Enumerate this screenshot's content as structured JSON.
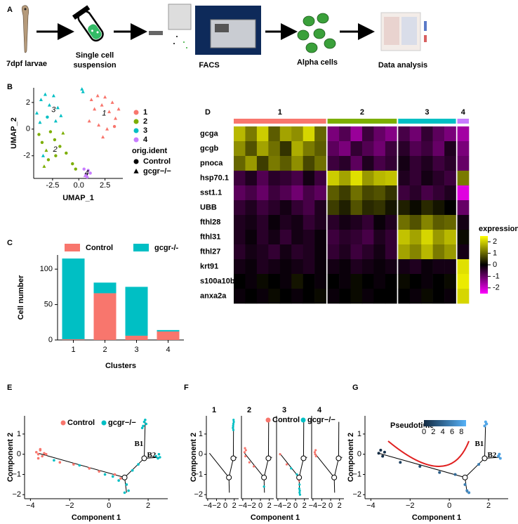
{
  "figure": {
    "panel_labels": [
      "A",
      "B",
      "C",
      "D",
      "E",
      "F",
      "G"
    ],
    "pipeline": [
      "7dpf larvae",
      "Single cell suspension",
      "FACS",
      "Alpha cells",
      "Data analysis"
    ]
  },
  "chart_data": [
    {
      "type": "scatter",
      "xlabel": "UMAP_1",
      "ylabel": "UMAP_2",
      "xlim": [
        -4.3,
        4.2
      ],
      "xticks": [
        -2.5,
        {
          "value": 0,
          "label": "0.0"
        },
        2.5
      ],
      "ylim": [
        -3.7,
        3.1
      ],
      "yticks": [
        -2,
        0,
        2
      ],
      "shape_legend_title": "orig.ident",
      "shape_legend": [
        {
          "name": "Control",
          "marker": "circle"
        },
        {
          "name": "gcgr−/−",
          "marker": "triangle"
        }
      ],
      "series": [
        {
          "name": "1",
          "color": "#F8766D",
          "x": [
            1.2,
            1.8,
            2.5,
            3.2,
            3.8,
            1.5,
            2.2,
            2.9,
            3.5,
            1.0,
            1.9,
            2.7,
            3.4,
            2.3
          ],
          "y": [
            2.2,
            2.5,
            2.4,
            2.0,
            1.5,
            1.5,
            1.8,
            1.3,
            0.8,
            0.6,
            0.3,
            0.0,
            0.2,
            -0.6
          ],
          "markers": [
            1,
            1,
            1,
            1,
            1,
            1,
            1,
            1,
            1,
            1,
            1,
            1,
            0,
            1
          ]
        },
        {
          "name": "2",
          "color": "#7CAE00",
          "x": [
            -3.8,
            -3.5,
            -3.1,
            -2.7,
            -2.3,
            -1.8,
            -1.5,
            -2.9,
            -2.2,
            -1.2,
            -0.6,
            -3.3,
            -0.3
          ],
          "y": [
            -0.4,
            -1.0,
            -1.6,
            -0.2,
            -0.8,
            -1.3,
            -0.3,
            -2.3,
            -2.0,
            -1.8,
            -2.6,
            -2.8,
            -3.0
          ],
          "markers": [
            0,
            0,
            1,
            0,
            0,
            0,
            1,
            0,
            0,
            0,
            0,
            1,
            0
          ]
        },
        {
          "name": "3",
          "color": "#00BFC4",
          "x": [
            -4.0,
            -3.6,
            -3.2,
            -2.8,
            -2.4,
            -2.0,
            -3.7,
            -3.0,
            -2.2,
            -1.7,
            -3.4,
            0.3,
            0.4
          ],
          "y": [
            1.2,
            2.2,
            2.6,
            1.8,
            2.5,
            1.6,
            0.5,
            0.9,
            0.6,
            1.0,
            -2.0,
            3.0,
            2.8
          ],
          "markers": [
            1,
            1,
            1,
            1,
            1,
            1,
            1,
            0,
            1,
            1,
            1,
            1,
            1
          ]
        },
        {
          "name": "4",
          "color": "#C77CFF",
          "x": [
            0.5,
            0.7,
            0.9,
            1.1,
            0.8,
            0.6
          ],
          "y": [
            -3.0,
            -3.4,
            -3.1,
            -3.3,
            -3.6,
            -3.5
          ],
          "markers": [
            0,
            0,
            0,
            0,
            0,
            1
          ]
        }
      ]
    },
    {
      "type": "heatmap",
      "genes": [
        "gcga",
        "gcgb",
        "pnoca",
        "hsp70.1",
        "sst1.1",
        "UBB",
        "fthl28",
        "fthl31",
        "fthl27",
        "krt91",
        "s100a10b",
        "anxa2a"
      ],
      "clusters": [
        {
          "name": "1",
          "color": "#F8766D"
        },
        {
          "name": "2",
          "color": "#7CAE00"
        },
        {
          "name": "3",
          "color": "#00BFC4"
        },
        {
          "name": "4",
          "color": "#C77CFF"
        }
      ],
      "column_clusters": [
        0,
        0,
        0,
        0,
        0,
        0,
        0,
        0,
        1,
        1,
        1,
        1,
        1,
        1,
        2,
        2,
        2,
        2,
        2,
        3
      ],
      "matrix": [
        [
          1.8,
          1.2,
          2.0,
          0.9,
          1.6,
          1.4,
          2.1,
          1.0,
          -1.2,
          -0.8,
          -1.5,
          -0.6,
          -1.0,
          -1.3,
          -0.7,
          -1.1,
          -0.5,
          -0.9,
          -1.2,
          -1.6
        ],
        [
          1.4,
          0.8,
          1.6,
          1.1,
          0.5,
          1.7,
          1.2,
          0.9,
          -0.9,
          -1.2,
          -0.5,
          -0.8,
          -1.1,
          -0.6,
          -0.4,
          -0.8,
          -0.6,
          -1.0,
          -0.3,
          -1.2
        ],
        [
          1.0,
          1.5,
          0.6,
          1.2,
          0.9,
          1.4,
          0.7,
          1.1,
          -0.6,
          -0.4,
          -0.9,
          -0.3,
          -0.7,
          -0.5,
          -0.2,
          -0.5,
          -0.3,
          -0.6,
          -0.4,
          -1.0
        ],
        [
          -0.6,
          -0.3,
          -0.8,
          -0.4,
          -0.5,
          -0.7,
          -0.2,
          -0.6,
          2.0,
          1.6,
          2.2,
          1.5,
          1.8,
          1.9,
          -0.3,
          -0.5,
          -0.2,
          -0.4,
          -0.6,
          1.2
        ],
        [
          -0.9,
          -0.7,
          -1.0,
          -0.6,
          -0.8,
          -1.1,
          -0.7,
          -0.9,
          0.9,
          0.6,
          1.1,
          0.7,
          0.8,
          0.5,
          -0.6,
          -0.4,
          -0.7,
          -0.5,
          -0.3,
          -2.2
        ],
        [
          -0.5,
          -0.3,
          -0.6,
          -0.4,
          -0.2,
          -0.5,
          -0.7,
          -0.3,
          0.6,
          0.3,
          0.8,
          0.4,
          0.5,
          0.2,
          0.3,
          0.1,
          0.4,
          0.2,
          0.0,
          -1.0
        ],
        [
          -0.3,
          -0.2,
          -0.4,
          -0.1,
          -0.3,
          -0.2,
          -0.5,
          -0.3,
          -0.4,
          -0.2,
          -0.3,
          -0.5,
          -0.1,
          -0.3,
          1.1,
          0.8,
          1.3,
          0.9,
          1.0,
          -0.2
        ],
        [
          -0.3,
          -0.1,
          -0.4,
          -0.2,
          -0.5,
          -0.2,
          -0.3,
          -0.1,
          -0.6,
          -0.4,
          -0.5,
          -0.7,
          -0.3,
          -0.5,
          1.9,
          1.6,
          2.1,
          1.5,
          1.8,
          0.1
        ],
        [
          -0.4,
          -0.2,
          -0.3,
          -0.5,
          -0.2,
          -0.4,
          -0.3,
          -0.1,
          -0.5,
          -0.3,
          -0.6,
          -0.4,
          -0.2,
          -0.5,
          1.6,
          1.3,
          1.8,
          1.2,
          1.5,
          -0.2
        ],
        [
          -0.2,
          -0.1,
          -0.3,
          -0.2,
          -0.1,
          -0.2,
          -0.3,
          -0.1,
          -0.2,
          -0.1,
          -0.3,
          -0.2,
          -0.1,
          -0.2,
          -0.2,
          -0.3,
          -0.1,
          -0.2,
          -0.2,
          2.2
        ],
        [
          0.0,
          -0.1,
          0.1,
          0.0,
          -0.1,
          0.2,
          0.0,
          -0.1,
          0.0,
          -0.1,
          0.1,
          0.0,
          -0.1,
          0.0,
          0.1,
          0.0,
          -0.1,
          0.0,
          0.1,
          2.3
        ],
        [
          -0.1,
          0.0,
          -0.1,
          0.1,
          0.0,
          -0.1,
          0.0,
          0.1,
          -0.1,
          0.0,
          0.1,
          -0.1,
          0.0,
          0.0,
          0.0,
          -0.1,
          0.1,
          0.0,
          -0.1,
          2.1
        ]
      ],
      "colormap": {
        "low": "#FF00FF",
        "mid": "#000000",
        "high": "#FFFF00"
      },
      "zlim": [
        -2.5,
        2.5
      ],
      "colorbar_title": "expression",
      "colorbar_ticks": [
        -2,
        -1,
        0,
        1,
        2
      ]
    },
    {
      "type": "bar",
      "xlabel": "Clusters",
      "ylabel": "Cell number",
      "categories": [
        "1",
        "2",
        "3",
        "4"
      ],
      "ylim": [
        0,
        120
      ],
      "yticks": [
        0,
        50,
        100
      ],
      "series": [
        {
          "name": "Control",
          "color": "#F8766D",
          "values": [
            1,
            66,
            6,
            12
          ]
        },
        {
          "name": "gcgr-/-",
          "color": "#00BFC4",
          "values": [
            114,
            15,
            69,
            2
          ]
        }
      ]
    },
    {
      "type": "trajectory",
      "xlabel": "Component 1",
      "ylabel": "Component 2",
      "xlim": [
        -4.3,
        3
      ],
      "xticks": [
        {
          "value": -4,
          "label": "−4"
        },
        {
          "value": -2,
          "label": "−2"
        },
        0,
        2
      ],
      "ylim": [
        -2.2,
        1.9
      ],
      "yticks": [
        {
          "value": -2,
          "label": "−2"
        },
        {
          "value": -1,
          "label": "−1"
        },
        0,
        1
      ],
      "edges": [
        {
          "x": [
            -3.6,
            0.8
          ],
          "y": [
            0.05,
            -1.15
          ]
        },
        {
          "x": [
            0.8,
            1.8
          ],
          "y": [
            -1.15,
            -0.2
          ]
        },
        {
          "x": [
            0.8,
            0.9
          ],
          "y": [
            -1.15,
            -1.9
          ]
        },
        {
          "x": [
            1.8,
            1.85
          ],
          "y": [
            -0.2,
            1.6
          ]
        },
        {
          "x": [
            1.8,
            2.6
          ],
          "y": [
            -0.2,
            -0.15
          ]
        }
      ],
      "branch_points": {
        "x": [
          0.8,
          1.8
        ],
        "y": [
          -1.15,
          -0.2
        ]
      },
      "branch_labels": [
        "B1",
        "B2"
      ],
      "series": [
        {
          "name": "Control",
          "color": "#F8766D",
          "x": [
            -3.7,
            -3.6,
            -3.5,
            -3.4,
            -3.3,
            -3.6,
            -3.5,
            -3.2,
            -2.5,
            -1.8,
            -1.0,
            -0.5,
            0.3,
            0.6
          ],
          "y": [
            0.1,
            0.0,
            0.2,
            -0.1,
            0.05,
            -0.2,
            0.25,
            0.0,
            -0.4,
            -0.5,
            -0.7,
            -0.85,
            -1.0,
            -1.2
          ]
        },
        {
          "name": "gcgr−/−",
          "color": "#00BFC4",
          "x": [
            -2.8,
            -1.5,
            -0.2,
            0.2,
            0.5,
            0.9,
            1.0,
            0.8,
            1.2,
            1.5,
            1.75,
            1.8,
            1.9,
            1.85,
            1.7,
            2.4,
            2.5,
            2.6,
            2.55
          ],
          "y": [
            -0.3,
            -0.55,
            -1.0,
            -1.1,
            -1.3,
            -1.5,
            -1.8,
            -1.9,
            -0.8,
            -0.5,
            1.4,
            1.6,
            1.5,
            1.7,
            1.3,
            -0.1,
            -0.2,
            -0.15,
            0.0
          ]
        }
      ]
    },
    {
      "type": "facets",
      "xlabel": "Component 1",
      "ylabel": "Component 2",
      "xlim": [
        -4.3,
        3
      ],
      "xticks": [
        {
          "value": -4,
          "label": "−4"
        },
        {
          "value": -2,
          "label": "−2"
        },
        0,
        2
      ],
      "ylim": [
        -2.2,
        1.9
      ],
      "yticks": [
        {
          "value": -2,
          "label": "−2"
        },
        {
          "value": -1,
          "label": "−1"
        },
        0,
        1
      ],
      "edges": [
        {
          "x": [
            -3.6,
            0.8
          ],
          "y": [
            0.05,
            -1.15
          ]
        },
        {
          "x": [
            0.8,
            1.8
          ],
          "y": [
            -1.15,
            -0.2
          ]
        },
        {
          "x": [
            0.8,
            0.9
          ],
          "y": [
            -1.15,
            -1.9
          ]
        },
        {
          "x": [
            1.8,
            1.85
          ],
          "y": [
            -0.2,
            1.6
          ]
        },
        {
          "x": [
            1.8,
            2.6
          ],
          "y": [
            -0.2,
            -0.15
          ]
        }
      ],
      "branch_points": {
        "x": [
          0.8,
          1.8
        ],
        "y": [
          -1.15,
          -0.2
        ]
      },
      "series": [
        {
          "name": "Control",
          "color": "#F8766D"
        },
        {
          "name": "gcgr−/−",
          "color": "#00BFC4"
        }
      ],
      "facets": [
        {
          "title": "1",
          "x": [
            1.7,
            1.8,
            1.9,
            1.85,
            1.75,
            1.8
          ],
          "y": [
            1.3,
            1.5,
            1.6,
            1.7,
            1.4,
            1.2
          ],
          "groups": [
            1,
            1,
            1,
            1,
            1,
            1
          ]
        },
        {
          "title": "2",
          "x": [
            -3.6,
            -3.5,
            -3.4,
            -3.3,
            -2.5,
            -1.5,
            0.5,
            0.8
          ],
          "y": [
            0.1,
            0.3,
            -0.1,
            0.2,
            -0.4,
            -0.6,
            -1.1,
            -1.6
          ],
          "groups": [
            0,
            0,
            0,
            0,
            0,
            0,
            1,
            1
          ]
        },
        {
          "title": "3",
          "x": [
            -3.5,
            -2.0,
            0.9,
            0.95,
            1.0,
            0.85,
            0.9,
            0.8,
            0.3,
            -1.0
          ],
          "y": [
            0.0,
            -0.5,
            -1.5,
            -1.8,
            -2.0,
            -1.7,
            -1.9,
            -1.3,
            -1.0,
            -0.7
          ],
          "groups": [
            0,
            0,
            1,
            1,
            1,
            1,
            1,
            0,
            1,
            1
          ]
        },
        {
          "title": "4",
          "x": [
            -3.6,
            -3.5,
            -3.4,
            -3.3
          ],
          "y": [
            0.1,
            0.0,
            0.2,
            -0.1
          ],
          "groups": [
            0,
            0,
            0,
            0
          ]
        }
      ]
    },
    {
      "type": "pseudotime",
      "xlabel": "Component 1",
      "ylabel": "Component 2",
      "xlim": [
        -4.3,
        3
      ],
      "xticks": [
        {
          "value": -4,
          "label": "−4"
        },
        {
          "value": -2,
          "label": "−2"
        },
        0,
        2
      ],
      "ylim": [
        -2.2,
        1.9
      ],
      "yticks": [
        {
          "value": -2,
          "label": "−2"
        },
        {
          "value": -1,
          "label": "−1"
        },
        0,
        1
      ],
      "edges": [
        {
          "x": [
            -3.6,
            0.8
          ],
          "y": [
            0.05,
            -1.15
          ]
        },
        {
          "x": [
            0.8,
            1.8
          ],
          "y": [
            -1.15,
            -0.2
          ]
        },
        {
          "x": [
            0.8,
            0.9
          ],
          "y": [
            -1.15,
            -1.9
          ]
        },
        {
          "x": [
            1.8,
            1.85
          ],
          "y": [
            -0.2,
            1.6
          ]
        },
        {
          "x": [
            1.8,
            2.6
          ],
          "y": [
            -0.2,
            -0.15
          ]
        }
      ],
      "branch_points": {
        "x": [
          0.8,
          1.8
        ],
        "y": [
          -1.15,
          -0.2
        ]
      },
      "branch_labels": [
        "B1",
        "B2"
      ],
      "colorbar_title": "Pseudotime",
      "color_scale": {
        "low": "#132B43",
        "high": "#56B1F7"
      },
      "pseudotime_lim": [
        0,
        9
      ],
      "colorbar_ticks": [
        0,
        2,
        4,
        6,
        8
      ],
      "points": {
        "x": [
          -3.6,
          -3.5,
          -3.4,
          -3.3,
          -2.5,
          -1.5,
          -0.5,
          0.3,
          0.8,
          0.9,
          1.0,
          1.5,
          1.8,
          1.85,
          1.9,
          2.5,
          2.6,
          2.55
        ],
        "y": [
          0.05,
          0.2,
          -0.1,
          0.1,
          -0.4,
          -0.6,
          -0.9,
          -1.0,
          -1.5,
          -1.8,
          -1.9,
          -0.5,
          1.4,
          1.6,
          1.5,
          -0.1,
          -0.2,
          0.0
        ],
        "pseudotime": [
          0,
          0.2,
          0.3,
          0.5,
          1.5,
          2.5,
          3.5,
          4.2,
          5.5,
          6,
          6.5,
          5.5,
          8,
          8.5,
          8.3,
          7.5,
          8,
          7.8
        ]
      }
    }
  ]
}
